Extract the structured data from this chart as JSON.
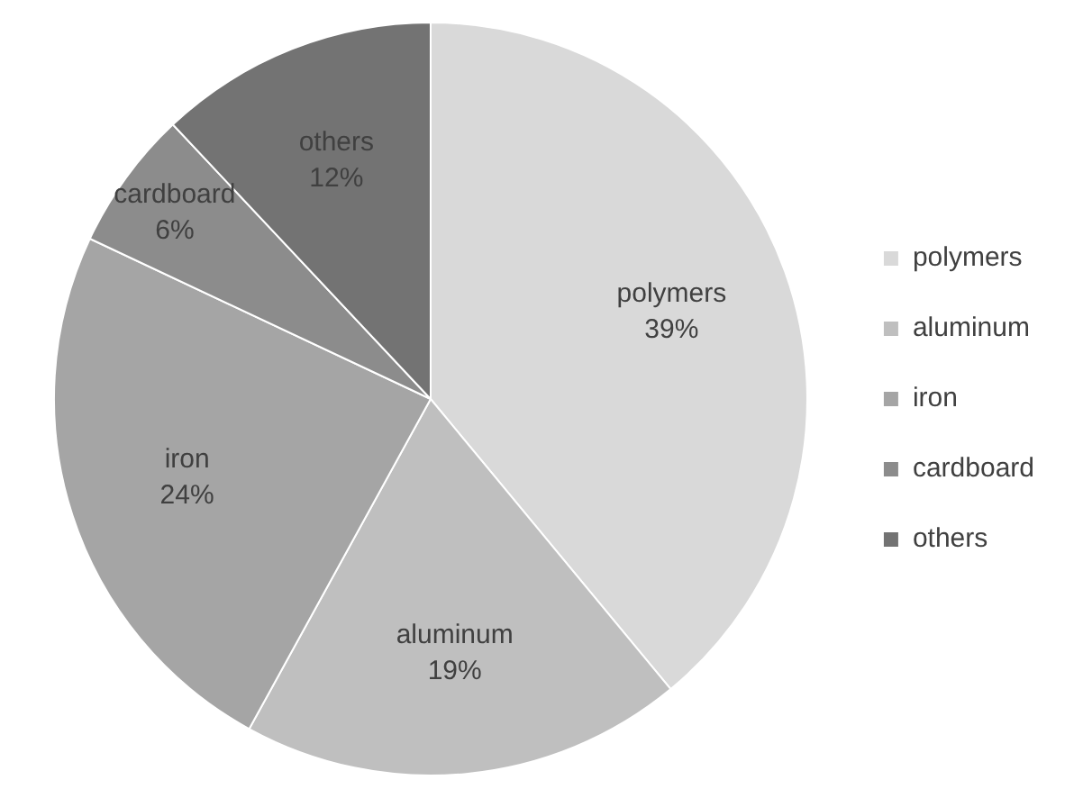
{
  "chart_data": {
    "type": "pie",
    "categories": [
      "polymers",
      "aluminum",
      "iron",
      "cardboard",
      "others"
    ],
    "values": [
      39,
      19,
      24,
      6,
      12
    ],
    "value_labels": [
      "39%",
      "19%",
      "24%",
      "6%",
      "12%"
    ],
    "colors": [
      "#d9d9d9",
      "#bfbfbf",
      "#a5a5a5",
      "#8c8c8c",
      "#737373"
    ],
    "legend": "right"
  }
}
